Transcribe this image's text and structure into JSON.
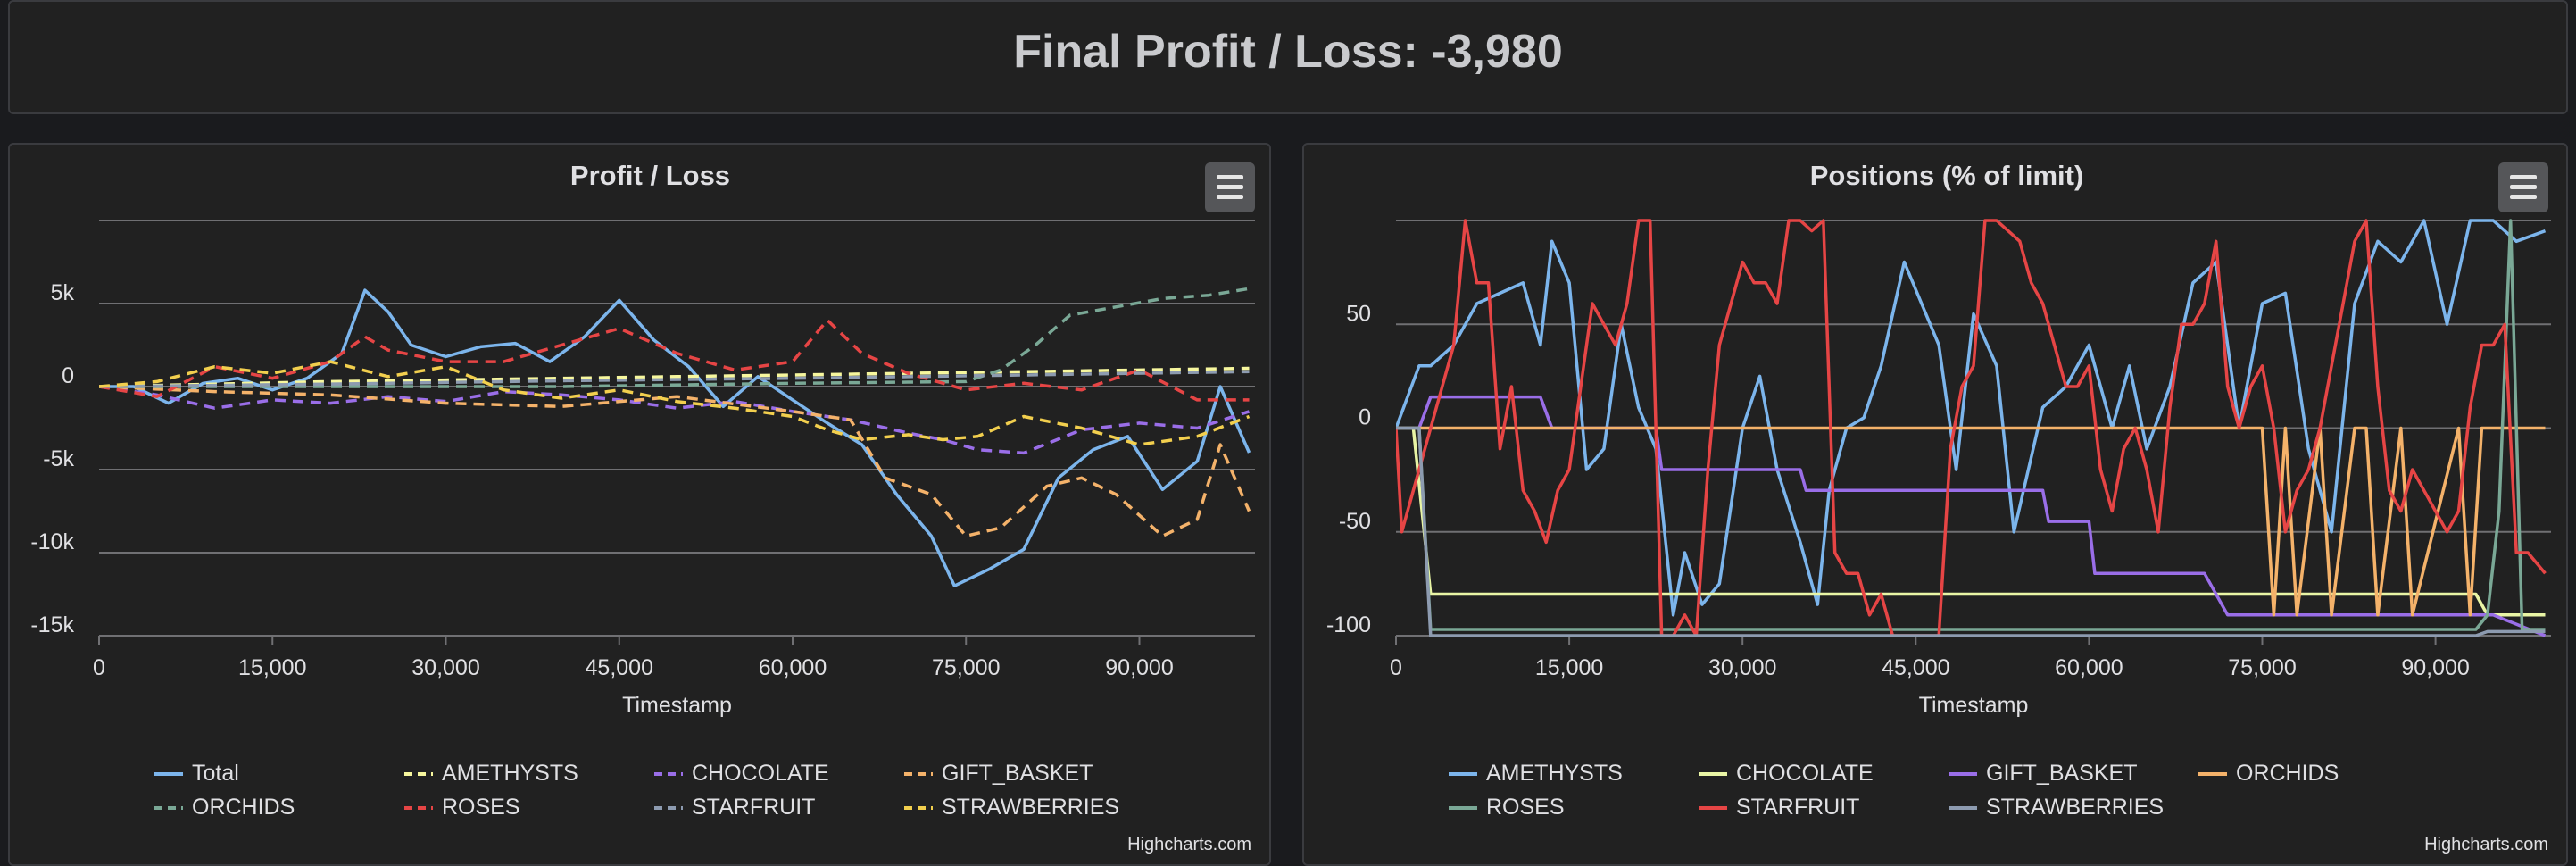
{
  "header": {
    "title": "Final Profit / Loss: -3,980"
  },
  "credits": "Highcharts.com",
  "colors": {
    "blue": "#7cb5ec",
    "yellow": "#f7f79e",
    "purple": "#9a6ee8",
    "orange": "#f4b26a",
    "green": "#7aa896",
    "red": "#e64545",
    "gray": "#8d9bb0",
    "gold": "#f2cf4e"
  },
  "chart_data": [
    {
      "type": "line",
      "title": "Profit / Loss",
      "xlabel": "Timestamp",
      "ylabel": "",
      "xlim": [
        0,
        100000
      ],
      "ylim": [
        -15000,
        10000
      ],
      "xticks": [
        0,
        15000,
        30000,
        45000,
        60000,
        75000,
        90000
      ],
      "xtick_labels": [
        "0",
        "15,000",
        "30,000",
        "45,000",
        "60,000",
        "75,000",
        "90,000"
      ],
      "yticks": [
        -15000,
        -10000,
        -5000,
        0,
        5000
      ],
      "ytick_labels": [
        "-15k",
        "-10k",
        "-5k",
        "0",
        "5k"
      ],
      "grid": true,
      "legend": "bottom",
      "series": [
        {
          "name": "Total",
          "dash": false,
          "color": "#7cb5ec",
          "x": [
            0,
            3000,
            6000,
            9000,
            12000,
            15000,
            18000,
            21000,
            23000,
            25000,
            27000,
            30000,
            33000,
            36000,
            39000,
            42000,
            45000,
            48000,
            51000,
            54000,
            57000,
            60000,
            63000,
            66000,
            69000,
            72000,
            74000,
            77000,
            80000,
            83000,
            86000,
            89000,
            92000,
            95000,
            97000,
            99500
          ],
          "y": [
            0,
            0,
            -1000,
            200,
            500,
            -200,
            500,
            2000,
            5800,
            4500,
            2500,
            1800,
            2400,
            2600,
            1500,
            3000,
            5200,
            2800,
            1200,
            -1200,
            600,
            -800,
            -2200,
            -3500,
            -6500,
            -9000,
            -12000,
            -11000,
            -9800,
            -5500,
            -3800,
            -3000,
            -6200,
            -4500,
            0,
            -3980
          ]
        },
        {
          "name": "AMETHYSTS",
          "dash": true,
          "color": "#f7f79e",
          "x": [
            0,
            10000,
            20000,
            30000,
            40000,
            50000,
            60000,
            70000,
            80000,
            90000,
            99500
          ],
          "y": [
            0,
            150,
            300,
            400,
            500,
            600,
            700,
            800,
            900,
            1000,
            1100
          ]
        },
        {
          "name": "CHOCOLATE",
          "dash": true,
          "color": "#9a6ee8",
          "x": [
            0,
            5000,
            10000,
            15000,
            20000,
            25000,
            30000,
            35000,
            40000,
            45000,
            50000,
            55000,
            60000,
            65000,
            70000,
            73000,
            76000,
            80000,
            85000,
            90000,
            95000,
            99500
          ],
          "y": [
            0,
            -500,
            -1300,
            -800,
            -1000,
            -600,
            -900,
            -300,
            -500,
            -800,
            -1300,
            -900,
            -1500,
            -2000,
            -2800,
            -3200,
            -3800,
            -4000,
            -2600,
            -2200,
            -2500,
            -1500
          ]
        },
        {
          "name": "GIFT_BASKET",
          "dash": true,
          "color": "#f4b26a",
          "x": [
            0,
            10000,
            20000,
            30000,
            40000,
            50000,
            60000,
            65000,
            68000,
            72000,
            75000,
            78000,
            82000,
            85000,
            88000,
            92000,
            95000,
            97000,
            99500
          ],
          "y": [
            0,
            -300,
            -500,
            -1000,
            -1200,
            -600,
            -1500,
            -2000,
            -5500,
            -6500,
            -9000,
            -8500,
            -6000,
            -5500,
            -6500,
            -9000,
            -8000,
            -3500,
            -7500
          ]
        },
        {
          "name": "ORCHIDS",
          "dash": true,
          "color": "#7aa896",
          "x": [
            0,
            20000,
            40000,
            60000,
            75000,
            78000,
            81000,
            84000,
            88000,
            92000,
            96000,
            99500
          ],
          "y": [
            0,
            0,
            0,
            200,
            300,
            1000,
            2500,
            4300,
            4800,
            5300,
            5500,
            5900
          ]
        },
        {
          "name": "ROSES",
          "dash": true,
          "color": "#e64545",
          "x": [
            0,
            5000,
            10000,
            15000,
            20000,
            23000,
            25000,
            30000,
            35000,
            40000,
            45000,
            50000,
            55000,
            60000,
            63000,
            66000,
            70000,
            75000,
            80000,
            85000,
            90000,
            95000,
            99500
          ],
          "y": [
            0,
            -600,
            1200,
            500,
            1500,
            3000,
            2200,
            1500,
            1500,
            2500,
            3500,
            2000,
            1000,
            1500,
            4000,
            2000,
            800,
            -200,
            200,
            -200,
            1000,
            -800,
            -800
          ]
        },
        {
          "name": "STARFRUIT",
          "dash": true,
          "color": "#8d9bb0",
          "x": [
            0,
            20000,
            40000,
            60000,
            80000,
            99500
          ],
          "y": [
            0,
            150,
            350,
            500,
            700,
            900
          ]
        },
        {
          "name": "STRAWBERRIES",
          "dash": true,
          "color": "#f2cf4e",
          "x": [
            0,
            5000,
            10000,
            15000,
            20000,
            25000,
            30000,
            35000,
            40000,
            45000,
            50000,
            55000,
            60000,
            63000,
            66000,
            70000,
            73000,
            76000,
            80000,
            85000,
            90000,
            95000,
            99500
          ],
          "y": [
            0,
            300,
            1200,
            800,
            1500,
            600,
            1200,
            -200,
            -700,
            -200,
            -900,
            -1300,
            -1800,
            -2600,
            -3200,
            -2900,
            -3200,
            -3000,
            -1800,
            -2500,
            -3500,
            -3000,
            -1800
          ]
        }
      ]
    },
    {
      "type": "line",
      "title": "Positions (% of limit)",
      "xlabel": "Timestamp",
      "ylabel": "",
      "xlim": [
        0,
        100000
      ],
      "ylim": [
        -100,
        100
      ],
      "xticks": [
        0,
        15000,
        30000,
        45000,
        60000,
        75000,
        90000
      ],
      "xtick_labels": [
        "0",
        "15,000",
        "30,000",
        "45,000",
        "60,000",
        "75,000",
        "90,000"
      ],
      "yticks": [
        -100,
        -50,
        0,
        50
      ],
      "ytick_labels": [
        "-100",
        "-50",
        "0",
        "50"
      ],
      "grid": true,
      "legend": "bottom",
      "series": [
        {
          "name": "AMETHYSTS",
          "dash": false,
          "color": "#7cb5ec",
          "x": [
            0,
            2000,
            3000,
            5000,
            7000,
            9000,
            11000,
            12500,
            13500,
            15000,
            16500,
            18000,
            19500,
            21000,
            22500,
            24000,
            25000,
            26500,
            28000,
            30000,
            31500,
            33000,
            35000,
            36500,
            37500,
            39000,
            40500,
            42000,
            44000,
            45500,
            47000,
            48500,
            50000,
            52000,
            53500,
            56000,
            58000,
            60000,
            62000,
            63500,
            65000,
            67000,
            69000,
            71000,
            73000,
            75000,
            77000,
            79000,
            81000,
            83000,
            85000,
            87000,
            89000,
            91000,
            93000,
            95000,
            97000,
            99500
          ],
          "y": [
            0,
            30,
            30,
            40,
            60,
            65,
            70,
            40,
            90,
            70,
            -20,
            -10,
            50,
            10,
            -10,
            -90,
            -60,
            -85,
            -75,
            0,
            25,
            -20,
            -55,
            -85,
            -30,
            0,
            5,
            30,
            80,
            60,
            40,
            -20,
            55,
            30,
            -50,
            10,
            20,
            40,
            0,
            30,
            -10,
            20,
            70,
            80,
            0,
            60,
            65,
            -10,
            -50,
            60,
            90,
            80,
            100,
            50,
            100,
            100,
            90,
            95
          ]
        },
        {
          "name": "CHOCOLATE",
          "dash": false,
          "color": "#e9f5a5",
          "x": [
            0,
            1500,
            3000,
            80000,
            93500,
            94500,
            99500
          ],
          "y": [
            0,
            0,
            -80,
            -80,
            -80,
            -90,
            -90
          ]
        },
        {
          "name": "GIFT_BASKET",
          "dash": false,
          "color": "#9a6ee8",
          "x": [
            0,
            2000,
            3000,
            12500,
            13500,
            22500,
            23000,
            35000,
            35500,
            56000,
            56500,
            60000,
            60500,
            70000,
            72000,
            95000,
            99500
          ],
          "y": [
            0,
            0,
            15,
            15,
            0,
            0,
            -20,
            -20,
            -30,
            -30,
            -45,
            -45,
            -70,
            -70,
            -90,
            -90,
            -100
          ]
        },
        {
          "name": "ORCHIDS",
          "dash": false,
          "color": "#f4b26a",
          "x": [
            0,
            75000,
            76000,
            77000,
            78000,
            80000,
            81000,
            83000,
            84000,
            85000,
            87000,
            88000,
            92000,
            93000,
            94000,
            96000,
            97000,
            99500
          ],
          "y": [
            0,
            0,
            -90,
            0,
            -90,
            0,
            -90,
            0,
            0,
            -90,
            0,
            -90,
            0,
            -90,
            0,
            0,
            0,
            0
          ]
        },
        {
          "name": "ROSES",
          "dash": false,
          "color": "#7aa896",
          "x": [
            0,
            2000,
            3000,
            93500,
            94500,
            95500,
            96500,
            97500,
            99500
          ],
          "y": [
            0,
            0,
            -97,
            -97,
            -90,
            -40,
            100,
            -97,
            -97
          ]
        },
        {
          "name": "STARFRUIT",
          "dash": false,
          "color": "#e64545",
          "x": [
            0,
            500,
            2000,
            3500,
            5000,
            6000,
            7000,
            8000,
            9000,
            10000,
            11000,
            12000,
            13000,
            14000,
            15000,
            16000,
            17000,
            18000,
            19000,
            20000,
            21000,
            22000,
            23000,
            24000,
            25000,
            26000,
            27000,
            28000,
            29000,
            30000,
            31000,
            32000,
            33000,
            34000,
            35000,
            36000,
            37000,
            38000,
            39000,
            40000,
            41000,
            42000,
            43000,
            44000,
            45000,
            46000,
            47000,
            48000,
            49000,
            50000,
            51000,
            52000,
            53000,
            54000,
            55000,
            56000,
            57000,
            58000,
            59000,
            60000,
            61000,
            62000,
            63000,
            64000,
            65000,
            66000,
            67000,
            68000,
            69000,
            70000,
            71000,
            72000,
            73000,
            74000,
            75000,
            76000,
            77000,
            78000,
            79000,
            80000,
            81000,
            82000,
            83000,
            84000,
            85000,
            86000,
            87000,
            88000,
            89000,
            90000,
            91000,
            92000,
            93000,
            94000,
            95000,
            96000,
            97000,
            98000,
            99500
          ],
          "y": [
            0,
            -50,
            -20,
            10,
            40,
            100,
            70,
            70,
            -10,
            20,
            -30,
            -40,
            -55,
            -30,
            -20,
            20,
            60,
            50,
            40,
            60,
            100,
            100,
            -100,
            -100,
            -90,
            -100,
            -20,
            40,
            60,
            80,
            70,
            70,
            60,
            100,
            100,
            95,
            100,
            -60,
            -70,
            -70,
            -90,
            -80,
            -100,
            -100,
            -100,
            -100,
            -100,
            -10,
            20,
            30,
            100,
            100,
            95,
            90,
            70,
            60,
            40,
            20,
            20,
            30,
            -20,
            -40,
            -10,
            0,
            -20,
            -50,
            10,
            50,
            50,
            60,
            90,
            20,
            0,
            20,
            30,
            0,
            -50,
            -30,
            -20,
            0,
            30,
            60,
            90,
            100,
            20,
            -30,
            -40,
            -20,
            -30,
            -40,
            -50,
            -40,
            10,
            40,
            40,
            50,
            -60,
            -60,
            -70
          ]
        },
        {
          "name": "STRAWBERRIES",
          "dash": false,
          "color": "#8d9bb0",
          "x": [
            0,
            2000,
            3000,
            93500,
            94500,
            95500,
            96500,
            99500
          ],
          "y": [
            0,
            0,
            -100,
            -100,
            -98,
            -98,
            -98,
            -98
          ]
        }
      ]
    }
  ]
}
